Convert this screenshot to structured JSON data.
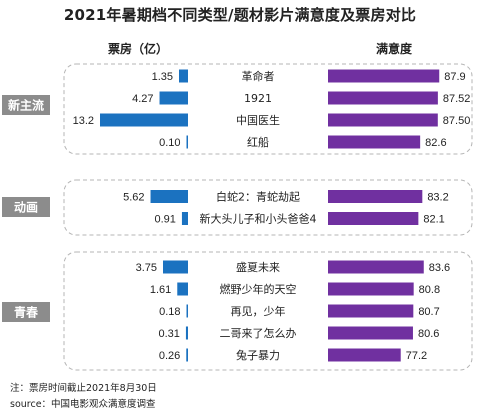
{
  "title": "2021年暑期档不同类型/题材影片满意度及票房对比",
  "headers": {
    "box_office": "票房（亿）",
    "satisfaction": "满意度"
  },
  "colors": {
    "box_bar": "#1b72c0",
    "sat_bar": "#7030a0",
    "group_label_bg": "#8c8c8c",
    "group_border": "#b5b5b5"
  },
  "chart_data": {
    "type": "bar",
    "subtype": "diverging-horizontal",
    "title": "2021年暑期档不同类型/题材影片满意度及票房对比",
    "left_axis_label": "票房（亿）",
    "right_axis_label": "满意度",
    "groups": [
      {
        "name": "新主流",
        "films": [
          {
            "title": "革命者",
            "box_office": 1.35,
            "box_office_label": "1.35",
            "satisfaction": 87.9,
            "satisfaction_label": "87.9"
          },
          {
            "title": "1921",
            "box_office": 4.27,
            "box_office_label": "4.27",
            "satisfaction": 87.52,
            "satisfaction_label": "87.52"
          },
          {
            "title": "中国医生",
            "box_office": 13.2,
            "box_office_label": "13.2",
            "satisfaction": 87.5,
            "satisfaction_label": "87.50"
          },
          {
            "title": "红船",
            "box_office": 0.1,
            "box_office_label": "0.10",
            "satisfaction": 82.6,
            "satisfaction_label": "82.6"
          }
        ]
      },
      {
        "name": "动画",
        "films": [
          {
            "title": "白蛇2：青蛇劫起",
            "box_office": 5.62,
            "box_office_label": "5.62",
            "satisfaction": 83.2,
            "satisfaction_label": "83.2"
          },
          {
            "title": "新大头儿子和小头爸爸4",
            "box_office": 0.91,
            "box_office_label": "0.91",
            "satisfaction": 82.1,
            "satisfaction_label": "82.1"
          }
        ]
      },
      {
        "name": "青春",
        "films": [
          {
            "title": "盛夏未来",
            "box_office": 3.75,
            "box_office_label": "3.75",
            "satisfaction": 83.6,
            "satisfaction_label": "83.6"
          },
          {
            "title": "燃野少年的天空",
            "box_office": 1.61,
            "box_office_label": "1.61",
            "satisfaction": 80.8,
            "satisfaction_label": "80.8"
          },
          {
            "title": "再见，少年",
            "box_office": 0.18,
            "box_office_label": "0.18",
            "satisfaction": 80.7,
            "satisfaction_label": "80.7"
          },
          {
            "title": "二哥来了怎么办",
            "box_office": 0.31,
            "box_office_label": "0.31",
            "satisfaction": 80.6,
            "satisfaction_label": "80.6"
          },
          {
            "title": "兔子暴力",
            "box_office": 0.26,
            "box_office_label": "0.26",
            "satisfaction": 77.2,
            "satisfaction_label": "77.2"
          }
        ]
      }
    ]
  },
  "footnotes": {
    "note": "注：票房时间截止2021年8月30日",
    "source": "source：中国电影观众满意度调查"
  }
}
